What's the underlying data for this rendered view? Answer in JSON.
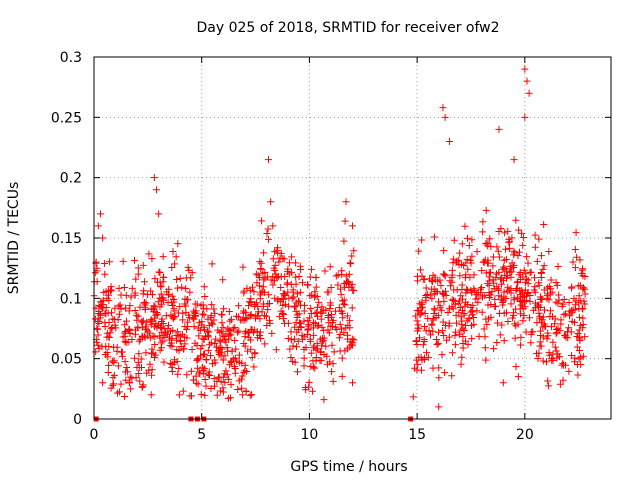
{
  "chart_data": {
    "type": "scatter",
    "title": "Day 025 of 2018, SRMTID for receiver ofw2",
    "xlabel": "GPS time / hours",
    "ylabel": "SRMTID / TECUs",
    "xlim": [
      0,
      24
    ],
    "ylim": [
      0,
      0.3
    ],
    "xticks": [
      0,
      5,
      10,
      15,
      20
    ],
    "xtick_labels": [
      "0",
      "5",
      "10",
      "15",
      "20"
    ],
    "yticks": [
      0,
      0.05,
      0.1,
      0.15,
      0.2,
      0.25,
      0.3
    ],
    "ytick_labels": [
      "0",
      "0.05",
      "0.1",
      "0.15",
      "0.2",
      "0.25",
      "0.3"
    ],
    "grid": true,
    "marker": "+",
    "color": "#ff0000",
    "zero_markers": {
      "marker": "square",
      "x": [
        0.1,
        4.5,
        4.8,
        5.1,
        14.7
      ],
      "y": [
        0,
        0,
        0,
        0,
        0
      ]
    },
    "data_segments": [
      {
        "x_start": 0.0,
        "x_end": 12.1,
        "description": "dense scatter"
      },
      {
        "x_start": 14.8,
        "x_end": 22.8,
        "description": "dense scatter"
      }
    ],
    "series": [
      {
        "name": "SRMTID",
        "trend": {
          "x": [
            0,
            1,
            2,
            3,
            4,
            5,
            6,
            7,
            8,
            9,
            10,
            11,
            12,
            15,
            16,
            17,
            18,
            19,
            20,
            21,
            22,
            22.8
          ],
          "y": [
            0.09,
            0.07,
            0.07,
            0.08,
            0.075,
            0.065,
            0.055,
            0.07,
            0.11,
            0.1,
            0.07,
            0.08,
            0.1,
            0.085,
            0.09,
            0.1,
            0.11,
            0.11,
            0.105,
            0.085,
            0.08,
            0.09
          ]
        },
        "x": [
          0.1,
          0.2,
          0.3,
          0.4,
          0.5,
          0.6,
          0.7,
          2.8,
          2.9,
          3.0,
          8.1,
          8.2,
          8.3,
          16.2,
          16.3,
          16.5,
          18.8,
          19.5,
          20.0,
          20.1,
          20.2,
          20.0,
          11.7,
          12.0,
          0.4,
          1.7,
          6.9,
          19.0,
          12.0,
          16.0
        ],
        "y": [
          0.13,
          0.16,
          0.17,
          0.15,
          0.12,
          0.1,
          0.08,
          0.2,
          0.19,
          0.17,
          0.215,
          0.18,
          0.16,
          0.258,
          0.25,
          0.23,
          0.24,
          0.215,
          0.29,
          0.28,
          0.27,
          0.25,
          0.18,
          0.16,
          0.03,
          0.025,
          0.02,
          0.03,
          0.03,
          0.01
        ]
      }
    ]
  }
}
